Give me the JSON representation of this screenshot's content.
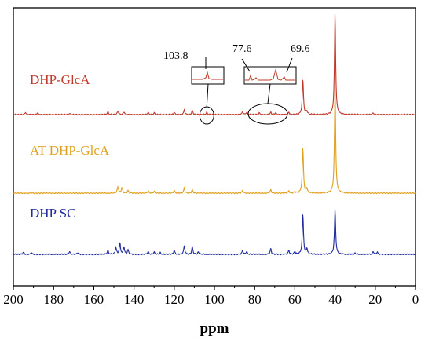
{
  "chart_data": {
    "type": "line",
    "xlabel": "ppm",
    "xlim": [
      200,
      0
    ],
    "x_ticks": [
      200,
      180,
      160,
      140,
      120,
      100,
      80,
      60,
      40,
      20,
      0
    ],
    "grid": false,
    "series": [
      {
        "name": "DHP-GlcA",
        "color": "#c0392b",
        "peaks": [
          {
            "ppm": 194.0,
            "h": 0.04
          },
          {
            "ppm": 188.0,
            "h": 0.03
          },
          {
            "ppm": 172.0,
            "h": 0.02
          },
          {
            "ppm": 153.0,
            "h": 0.05
          },
          {
            "ppm": 148.0,
            "h": 0.06
          },
          {
            "ppm": 145.0,
            "h": 0.05
          },
          {
            "ppm": 133.0,
            "h": 0.04
          },
          {
            "ppm": 130.0,
            "h": 0.03
          },
          {
            "ppm": 120.0,
            "h": 0.04
          },
          {
            "ppm": 115.0,
            "h": 0.08
          },
          {
            "ppm": 111.0,
            "h": 0.07
          },
          {
            "ppm": 103.8,
            "h": 0.04
          },
          {
            "ppm": 86.0,
            "h": 0.05
          },
          {
            "ppm": 84.0,
            "h": 0.04
          },
          {
            "ppm": 77.6,
            "h": 0.03
          },
          {
            "ppm": 72.0,
            "h": 0.04
          },
          {
            "ppm": 69.6,
            "h": 0.03
          },
          {
            "ppm": 63.0,
            "h": 0.04
          },
          {
            "ppm": 56.0,
            "h": 0.62
          },
          {
            "ppm": 54.0,
            "h": 0.06
          },
          {
            "ppm": 40.0,
            "h": 1.8
          },
          {
            "ppm": 21.0,
            "h": 0.03
          }
        ]
      },
      {
        "name": "AT DHP-GlcA",
        "color": "#e0a020",
        "peaks": [
          {
            "ppm": 148.0,
            "h": 0.12
          },
          {
            "ppm": 146.0,
            "h": 0.1
          },
          {
            "ppm": 143.0,
            "h": 0.05
          },
          {
            "ppm": 133.0,
            "h": 0.04
          },
          {
            "ppm": 130.0,
            "h": 0.03
          },
          {
            "ppm": 120.0,
            "h": 0.05
          },
          {
            "ppm": 115.0,
            "h": 0.09
          },
          {
            "ppm": 111.0,
            "h": 0.06
          },
          {
            "ppm": 86.0,
            "h": 0.05
          },
          {
            "ppm": 72.0,
            "h": 0.06
          },
          {
            "ppm": 63.0,
            "h": 0.04
          },
          {
            "ppm": 60.0,
            "h": 0.03
          },
          {
            "ppm": 56.0,
            "h": 0.8
          },
          {
            "ppm": 54.0,
            "h": 0.08
          },
          {
            "ppm": 40.0,
            "h": 1.9
          }
        ]
      },
      {
        "name": "DHP SC",
        "color": "#1f2a9c",
        "peaks": [
          {
            "ppm": 195.0,
            "h": 0.04
          },
          {
            "ppm": 191.0,
            "h": 0.03
          },
          {
            "ppm": 172.0,
            "h": 0.05
          },
          {
            "ppm": 168.0,
            "h": 0.03
          },
          {
            "ppm": 153.0,
            "h": 0.07
          },
          {
            "ppm": 149.0,
            "h": 0.12
          },
          {
            "ppm": 147.0,
            "h": 0.2
          },
          {
            "ppm": 145.0,
            "h": 0.13
          },
          {
            "ppm": 143.0,
            "h": 0.08
          },
          {
            "ppm": 133.0,
            "h": 0.05
          },
          {
            "ppm": 130.0,
            "h": 0.04
          },
          {
            "ppm": 127.0,
            "h": 0.03
          },
          {
            "ppm": 120.0,
            "h": 0.07
          },
          {
            "ppm": 115.0,
            "h": 0.15
          },
          {
            "ppm": 111.0,
            "h": 0.13
          },
          {
            "ppm": 108.0,
            "h": 0.04
          },
          {
            "ppm": 86.0,
            "h": 0.07
          },
          {
            "ppm": 84.0,
            "h": 0.05
          },
          {
            "ppm": 72.0,
            "h": 0.1
          },
          {
            "ppm": 63.0,
            "h": 0.07
          },
          {
            "ppm": 60.0,
            "h": 0.05
          },
          {
            "ppm": 56.0,
            "h": 0.71
          },
          {
            "ppm": 54.0,
            "h": 0.1
          },
          {
            "ppm": 40.0,
            "h": 0.8
          },
          {
            "ppm": 30.0,
            "h": 0.02
          },
          {
            "ppm": 21.0,
            "h": 0.05
          },
          {
            "ppm": 19.0,
            "h": 0.04
          }
        ]
      }
    ],
    "annotations": [
      "103.8",
      "77.6",
      "69.6"
    ]
  }
}
